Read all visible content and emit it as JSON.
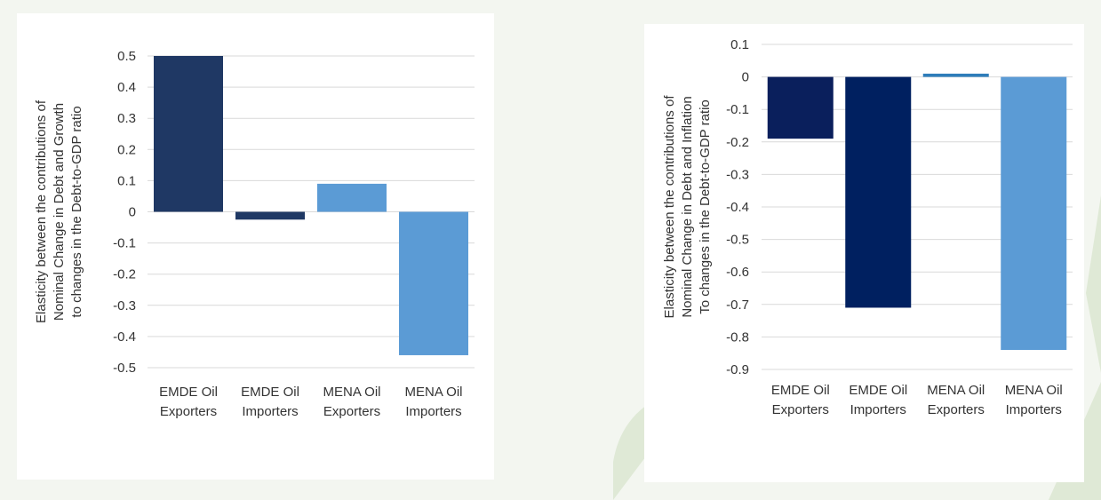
{
  "background": {
    "page_color": "#f3f6f0",
    "decor_color": "#dfe9d6"
  },
  "chart_data": [
    {
      "type": "bar",
      "categories": [
        [
          "EMDE Oil",
          "Exporters"
        ],
        [
          "EMDE Oil",
          "Importers"
        ],
        [
          "MENA Oil",
          "Exporters"
        ],
        [
          "MENA Oil",
          "Importers"
        ]
      ],
      "values": [
        0.5,
        -0.025,
        0.09,
        -0.46
      ],
      "colors": [
        "#1f3864",
        "#1f3864",
        "#5b9bd5",
        "#5b9bd5"
      ],
      "title": "",
      "xlabel": "",
      "ylabel_lines": [
        "Elasticity between the contributions of",
        "Nominal Change in Debt and Growth",
        "to changes in the Debt-to-GDP ratio"
      ],
      "ylim": [
        -0.5,
        0.5
      ],
      "yticks": [
        0.5,
        0.4,
        0.3,
        0.2,
        0.1,
        0,
        -0.1,
        -0.2,
        -0.3,
        -0.4,
        -0.5
      ],
      "ytick_labels": [
        "0.5",
        "0.4",
        "0.3",
        "0.2",
        "0.1",
        "0",
        "-0.1",
        "-0.2",
        "-0.3",
        "-0.4",
        "-0.5"
      ],
      "grid": true,
      "legend": "none"
    },
    {
      "type": "bar",
      "categories": [
        [
          "EMDE Oil",
          "Exporters"
        ],
        [
          "EMDE Oil",
          "Importers"
        ],
        [
          "MENA Oil",
          "Exporters"
        ],
        [
          "MENA Oil",
          "Importers"
        ]
      ],
      "values": [
        -0.19,
        -0.71,
        0.01,
        -0.84
      ],
      "colors": [
        "#0a1f5c",
        "#002060",
        "#2e7dba",
        "#5b9bd5"
      ],
      "title": "",
      "xlabel": "",
      "ylabel_lines": [
        "Elasticity between the contributions of",
        "Nominal Change in Debt and Inflation",
        "To changes in the Debt-to-GDP ratio"
      ],
      "ylim": [
        -0.9,
        0.1
      ],
      "yticks": [
        0.1,
        0,
        -0.1,
        -0.2,
        -0.3,
        -0.4,
        -0.5,
        -0.6,
        -0.7,
        -0.8,
        -0.9
      ],
      "ytick_labels": [
        "0.1",
        "0",
        "-0.1",
        "-0.2",
        "-0.3",
        "-0.4",
        "-0.5",
        "-0.6",
        "-0.7",
        "-0.8",
        "-0.9"
      ],
      "grid": true,
      "legend": "none"
    }
  ]
}
